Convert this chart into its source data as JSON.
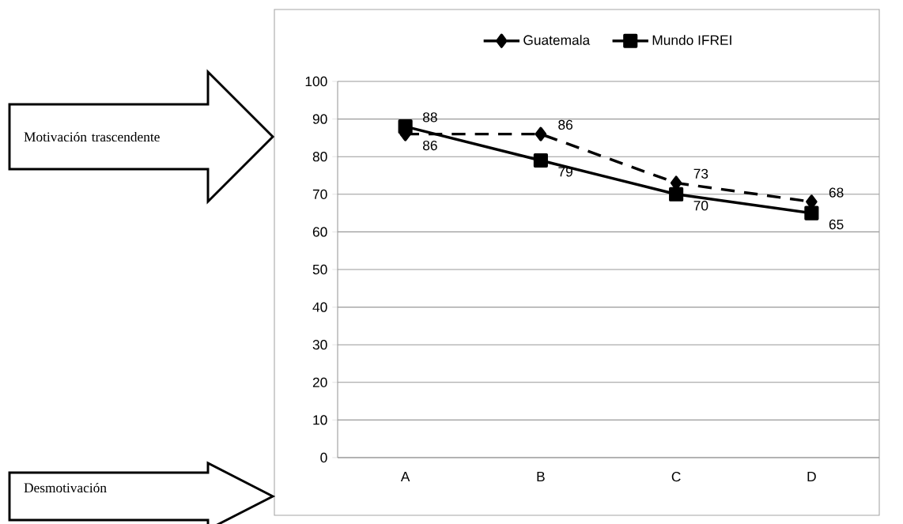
{
  "chart_data": {
    "type": "line",
    "categories": [
      "A",
      "B",
      "C",
      "D"
    ],
    "series": [
      {
        "name": "Guatemala",
        "color": "#000000",
        "values": [
          86,
          86,
          73,
          68
        ],
        "marker": "diamond",
        "line_style": "dashed"
      },
      {
        "name": "Mundo IFREI",
        "color": "#000000",
        "values": [
          88,
          79,
          70,
          65
        ],
        "marker": "square",
        "line_style": "solid"
      }
    ],
    "ylim": [
      0,
      100
    ],
    "yticks": [
      0,
      10,
      20,
      30,
      40,
      50,
      60,
      70,
      80,
      90,
      100
    ],
    "grid": "y",
    "legend": "top",
    "data_labels": true,
    "annotations": [
      "Motivación trascendente",
      "Desmotivación"
    ]
  }
}
